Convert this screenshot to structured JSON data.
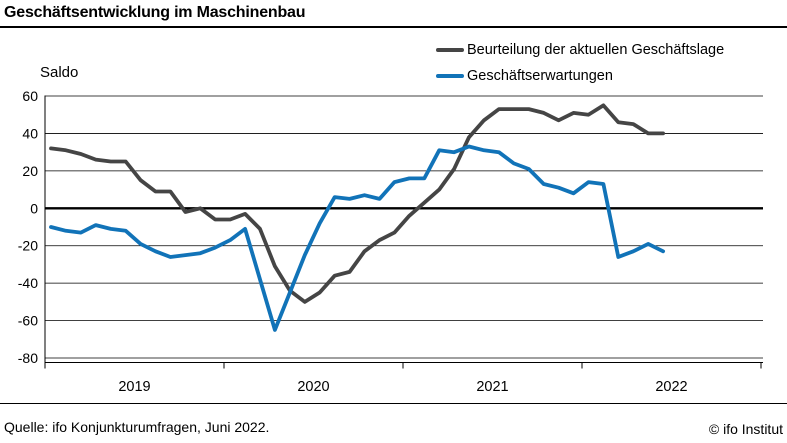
{
  "header": {
    "title": "Geschäftsentwicklung im Maschinenbau"
  },
  "chart_data": {
    "type": "line",
    "title": "Geschäftsentwicklung im Maschinenbau",
    "ylabel": "Saldo",
    "xlabel": "",
    "ylim": [
      -80,
      60
    ],
    "y_ticks": [
      60,
      40,
      20,
      0,
      -20,
      -40,
      -60,
      -80
    ],
    "grid": true,
    "legend_position": "top-right",
    "x_unit": "month",
    "x_range": "2019-01 to 2022-06",
    "x_year_labels": [
      "2019",
      "2020",
      "2021",
      "2022"
    ],
    "series": [
      {
        "name": "Beurteilung der aktuellen Geschäftslage",
        "color": "#454545",
        "values": [
          32,
          31,
          29,
          26,
          25,
          25,
          15,
          9,
          9,
          -2,
          0,
          -6,
          -6,
          -3,
          -11,
          -31,
          -44,
          -50,
          -45,
          -36,
          -34,
          -23,
          -17,
          -13,
          -4,
          3,
          10,
          21,
          38,
          47,
          53,
          53,
          53,
          51,
          47,
          51,
          50,
          55,
          46,
          45,
          40,
          40
        ]
      },
      {
        "name": "Geschäftserwartungen",
        "color": "#1173b8",
        "values": [
          -10,
          -12,
          -13,
          -9,
          -11,
          -12,
          -19,
          -23,
          -26,
          -25,
          -24,
          -21,
          -17,
          -11,
          -38,
          -65,
          -45,
          -25,
          -8,
          6,
          5,
          7,
          5,
          14,
          16,
          16,
          31,
          30,
          33,
          31,
          30,
          24,
          21,
          13,
          11,
          8,
          14,
          13,
          -26,
          -23,
          -19,
          -23
        ]
      }
    ]
  },
  "footer": {
    "source": "Quelle: ifo Konjunkturumfragen, Juni 2022.",
    "copyright": "© ifo Institut"
  }
}
